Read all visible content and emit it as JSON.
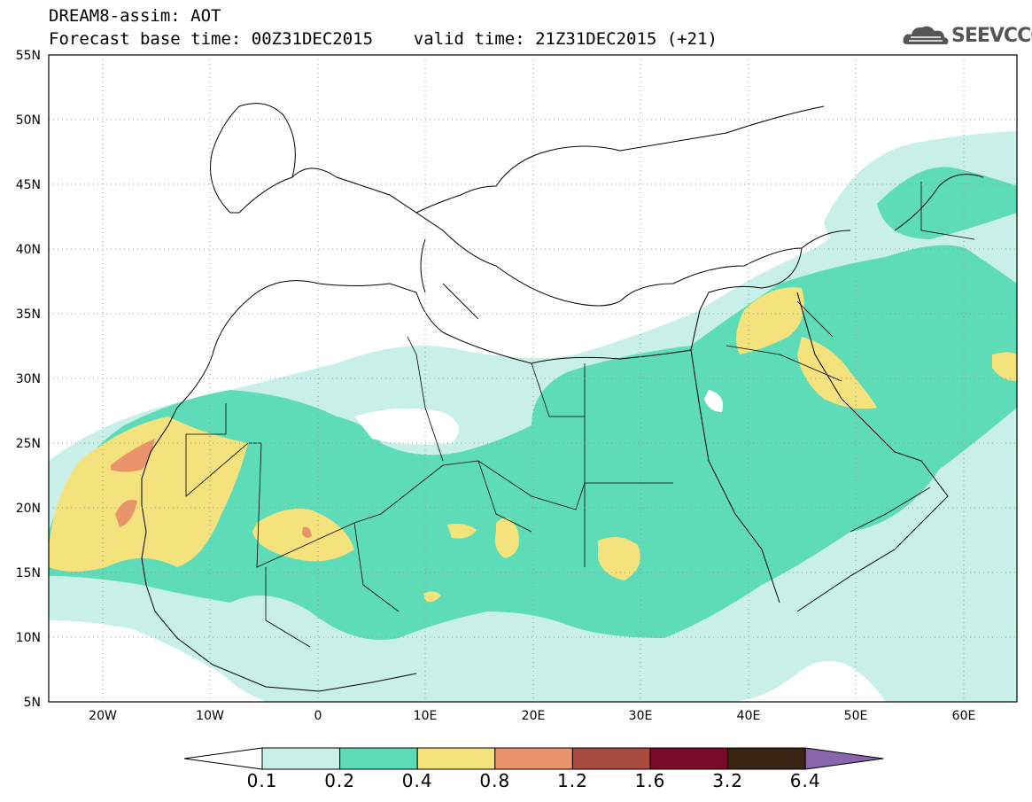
{
  "header": {
    "line1": "DREAM8-assim: AOT",
    "line2": "Forecast base time: 00Z31DEC2015    valid time: 21Z31DEC2015 (+21)"
  },
  "logo": {
    "text": "SEEVCCC",
    "icon": "cloud-icon"
  },
  "map": {
    "lon_range": [
      -25,
      65
    ],
    "lat_range": [
      5,
      55
    ],
    "lat_labels": [
      "55N",
      "50N",
      "45N",
      "40N",
      "35N",
      "30N",
      "25N",
      "20N",
      "15N",
      "10N",
      "5N"
    ],
    "lon_labels": [
      "20W",
      "10W",
      "0",
      "10E",
      "20E",
      "30E",
      "40E",
      "50E",
      "60E"
    ],
    "grid": "dotted"
  },
  "colorbar": {
    "levels": [
      "0.1",
      "0.2",
      "0.4",
      "0.8",
      "1.2",
      "1.6",
      "3.2",
      "6.4"
    ],
    "colors": [
      "#ffffff",
      "#c8f0e8",
      "#5ddcb7",
      "#f4e27c",
      "#e8936a",
      "#a84a3e",
      "#7a0a2a",
      "#3a2414",
      "#8a64ac"
    ]
  }
}
